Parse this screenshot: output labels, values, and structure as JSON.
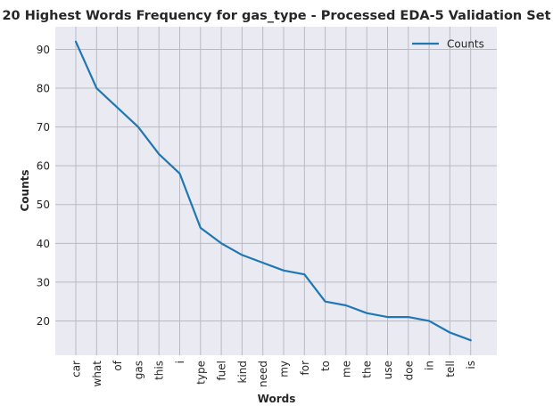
{
  "chart_data": {
    "type": "line",
    "title": "20 Highest Words Frequency for gas_type - Processed EDA-5 Validation Set",
    "xlabel": "Words",
    "ylabel": "Counts",
    "categories": [
      "car",
      "what",
      "of",
      "gas",
      "this",
      "i",
      "type",
      "fuel",
      "kind",
      "need",
      "my",
      "for",
      "to",
      "me",
      "the",
      "use",
      "doe",
      "in",
      "tell",
      "is"
    ],
    "series": [
      {
        "name": "Counts",
        "color": "#1f77b4",
        "values": [
          92,
          80,
          75,
          70,
          63,
          58,
          44,
          40,
          37,
          35,
          33,
          32,
          25,
          24,
          22,
          21,
          21,
          20,
          17,
          15
        ]
      }
    ],
    "ylim": [
      11.15,
      95.85
    ],
    "yticks": [
      20,
      30,
      40,
      50,
      60,
      70,
      80,
      90
    ],
    "grid": true,
    "legend_position": "top-right",
    "background_color": "#eaeaf2",
    "grid_color": "#b9b9c1"
  }
}
